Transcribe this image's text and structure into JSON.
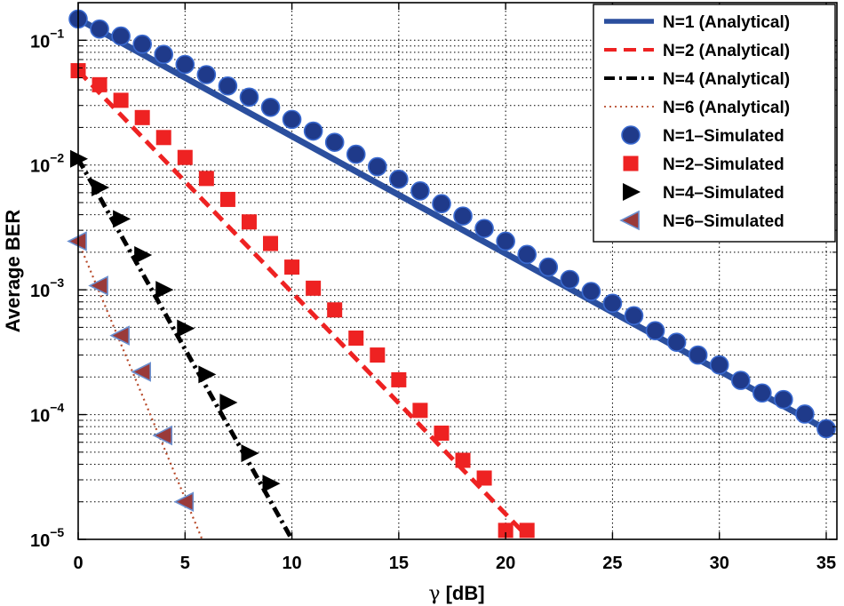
{
  "chart_data": {
    "type": "line",
    "title": "",
    "xlabel_prefix": "γ",
    "xlabel": "[dB]",
    "ylabel": "Average BER",
    "xlim": [
      0,
      35
    ],
    "ylim": [
      1e-05,
      0.2
    ],
    "yscale": "log",
    "grid": true,
    "legend_position": "top-right",
    "x_ticks": [
      "0",
      "5",
      "10",
      "15",
      "20",
      "25",
      "30",
      "35"
    ],
    "y_ticks": [
      {
        "base": "10",
        "exp": "−5"
      },
      {
        "base": "10",
        "exp": "−4"
      },
      {
        "base": "10",
        "exp": "−3"
      },
      {
        "base": "10",
        "exp": "−2"
      },
      {
        "base": "10",
        "exp": "−1"
      }
    ],
    "series": [
      {
        "name": "N=1 (Analytical)",
        "kind": "line",
        "color": "#2b4f9e",
        "style": "solid",
        "x": [
          0,
          35
        ],
        "y": [
          0.148,
          7.6e-05
        ]
      },
      {
        "name": "N=2 (Analytical)",
        "kind": "line",
        "color": "#ee2222",
        "style": "dashed",
        "x": [
          0,
          21
        ],
        "y": [
          0.057,
          1.06e-05
        ]
      },
      {
        "name": "N=4 (Analytical)",
        "kind": "line",
        "color": "#000000",
        "style": "dashdot",
        "x": [
          0,
          10
        ],
        "y": [
          0.0112,
          1e-05
        ]
      },
      {
        "name": "N=6 (Analytical)",
        "kind": "line",
        "color": "#b84a2a",
        "style": "dotted",
        "x": [
          0,
          5.8
        ],
        "y": [
          0.00245,
          1e-05
        ]
      },
      {
        "name": "N=1–Simulated",
        "kind": "marker",
        "marker": "circle",
        "color": "#1f3a8a",
        "edge": "#3a6ad0",
        "x": [
          0,
          1,
          2,
          3,
          4,
          5,
          6,
          7,
          8,
          9,
          10,
          11,
          12,
          13,
          14,
          15,
          16,
          17,
          18,
          19,
          20,
          21,
          22,
          23,
          24,
          25,
          26,
          27,
          28,
          29,
          30,
          31,
          32,
          33,
          34,
          35
        ],
        "y": [
          0.148,
          0.123,
          0.108,
          0.093,
          0.077,
          0.064,
          0.053,
          0.043,
          0.035,
          0.029,
          0.0232,
          0.0187,
          0.0152,
          0.0122,
          0.0097,
          0.0077,
          0.0062,
          0.0049,
          0.0039,
          0.0031,
          0.00245,
          0.00192,
          0.00152,
          0.00121,
          0.00097,
          0.00078,
          0.00062,
          0.00047,
          0.00038,
          0.0003,
          0.00025,
          0.000188,
          0.000149,
          0.000132,
          0.000101,
          7.7e-05
        ]
      },
      {
        "name": "N=2–Simulated",
        "kind": "marker",
        "marker": "square",
        "color": "#ee2222",
        "edge": "#ee2222",
        "x": [
          0,
          1,
          2,
          3,
          4,
          5,
          6,
          7,
          8,
          9,
          10,
          11,
          12,
          13,
          14,
          15,
          16,
          17,
          18,
          19,
          20,
          21
        ],
        "y": [
          0.057,
          0.044,
          0.033,
          0.024,
          0.0166,
          0.0115,
          0.0078,
          0.0053,
          0.0035,
          0.00235,
          0.00152,
          0.00103,
          0.00069,
          0.00041,
          0.0003,
          0.00019,
          0.000108,
          7.1e-05,
          4.3e-05,
          3.1e-05,
          1.18e-05,
          1.18e-05
        ]
      },
      {
        "name": "N=4–Simulated",
        "kind": "marker",
        "marker": "triangle-right",
        "color": "#000000",
        "edge": "#000000",
        "x": [
          0,
          1,
          2,
          3,
          4,
          5,
          6,
          7,
          8,
          9
        ],
        "y": [
          0.0112,
          0.0066,
          0.0037,
          0.0019,
          0.001,
          0.00049,
          0.00021,
          0.000125,
          4.9e-05,
          2.8e-05
        ]
      },
      {
        "name": "N=6–Simulated",
        "kind": "marker",
        "marker": "triangle-left",
        "color": "#9a3a3a",
        "edge": "#6a8fcf",
        "x": [
          0,
          1,
          2,
          3,
          4,
          5
        ],
        "y": [
          0.00245,
          0.00108,
          0.00043,
          0.00022,
          6.8e-05,
          2e-05
        ]
      }
    ]
  }
}
